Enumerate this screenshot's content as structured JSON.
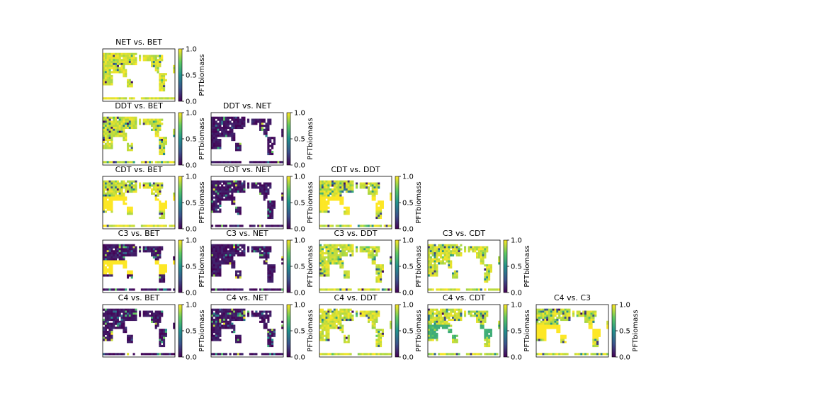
{
  "chart_data": {
    "type": "heatmap",
    "colormap": "viridis",
    "colormap_stops": [
      "#440154",
      "#3b528b",
      "#21918c",
      "#5ec962",
      "#fde725"
    ],
    "colorbar": {
      "label": "PFTbiomass",
      "vmin": 0.0,
      "vmax": 1.0,
      "ticks": [
        "0.0",
        "0.5",
        "1.0"
      ]
    },
    "grid": {
      "cols": 36,
      "rows": 26
    },
    "panels": [
      {
        "title": "NET vs. BET",
        "row": 0,
        "col": 0,
        "mean": 0.9,
        "spread": 0.15,
        "dominant": 1.0
      },
      {
        "title": "DDT vs. BET",
        "row": 1,
        "col": 0,
        "mean": 0.72,
        "spread": 0.35,
        "dominant": 1.0
      },
      {
        "title": "DDT vs. NET",
        "row": 1,
        "col": 1,
        "mean": 0.08,
        "spread": 0.2,
        "dominant": 0.0
      },
      {
        "title": "CDT vs. BET",
        "row": 2,
        "col": 0,
        "mean": 0.45,
        "spread": 0.5,
        "dominant": 1.0
      },
      {
        "title": "CDT vs. NET",
        "row": 2,
        "col": 1,
        "mean": 0.1,
        "spread": 0.25,
        "dominant": 0.0
      },
      {
        "title": "CDT vs. DDT",
        "row": 2,
        "col": 2,
        "mean": 0.45,
        "spread": 0.5,
        "dominant": 1.0
      },
      {
        "title": "C3 vs. BET",
        "row": 3,
        "col": 0,
        "mean": 0.35,
        "spread": 0.45,
        "dominant": 0.0
      },
      {
        "title": "C3 vs. NET",
        "row": 3,
        "col": 1,
        "mean": 0.12,
        "spread": 0.25,
        "dominant": 0.0
      },
      {
        "title": "C3 vs. DDT",
        "row": 3,
        "col": 2,
        "mean": 0.8,
        "spread": 0.35,
        "dominant": 1.0
      },
      {
        "title": "C3 vs. CDT",
        "row": 3,
        "col": 3,
        "mean": 0.85,
        "spread": 0.3,
        "dominant": 1.0
      },
      {
        "title": "C4 vs. BET",
        "row": 4,
        "col": 0,
        "mean": 0.25,
        "spread": 0.4,
        "dominant": 0.0
      },
      {
        "title": "C4 vs. NET",
        "row": 4,
        "col": 1,
        "mean": 0.2,
        "spread": 0.35,
        "dominant": 0.0
      },
      {
        "title": "C4 vs. DDT",
        "row": 4,
        "col": 2,
        "mean": 0.85,
        "spread": 0.3,
        "dominant": 1.0
      },
      {
        "title": "C4 vs. CDT",
        "row": 4,
        "col": 3,
        "mean": 0.7,
        "spread": 0.45,
        "dominant": 1.0
      },
      {
        "title": "C4 vs. C3",
        "row": 4,
        "col": 4,
        "mean": 0.4,
        "spread": 0.5,
        "dominant": 1.0
      }
    ]
  }
}
